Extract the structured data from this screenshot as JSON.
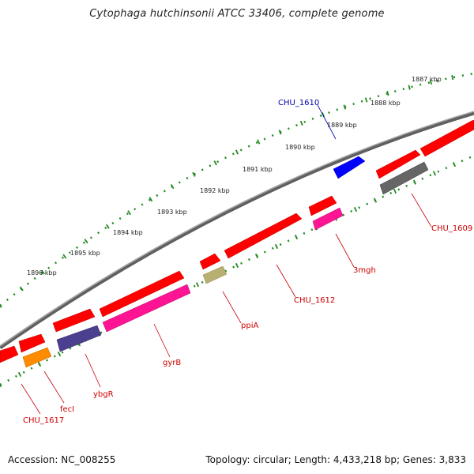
{
  "title": "Cytophaga hutchinsonii ATCC 33406, complete genome",
  "footer": {
    "accession": "Accession: NC_008255",
    "summary": "Topology: circular; Length: 4,433,218 bp; Genes: 3,833"
  },
  "colors": {
    "cds_red": "#ff0000",
    "backbone": "#808080",
    "ruler": "#228b22",
    "label_red": "#cc0000",
    "label_blue": "#0000aa"
  },
  "ruler": {
    "unit": "kbp",
    "ticks": [
      "1887 kbp",
      "1888 kbp",
      "1889 kbp",
      "1890 kbp",
      "1891 kbp",
      "1892 kbp",
      "1893 kbp",
      "1894 kbp",
      "1895 kbp",
      "1896 kbp"
    ]
  },
  "genes": [
    {
      "name": "CHU_1610",
      "color": "#0000ff",
      "label_color": "#0000aa"
    },
    {
      "name": "CHU_1609",
      "color": "#666666",
      "label_color": "#cc0000"
    },
    {
      "name": "3mgh",
      "color": "#ff1493",
      "label_color": "#cc0000"
    },
    {
      "name": "CHU_1612",
      "color": "#ff0000",
      "label_color": "#cc0000"
    },
    {
      "name": "ppiA",
      "color": "#b8b070",
      "label_color": "#cc0000"
    },
    {
      "name": "gyrB",
      "color": "#ff1493",
      "label_color": "#cc0000"
    },
    {
      "name": "ybgR",
      "color": "#4b3f8f",
      "label_color": "#cc0000"
    },
    {
      "name": "fecI",
      "color": "#ff8c00",
      "label_color": "#cc0000"
    },
    {
      "name": "CHU_1617",
      "color": "#ff0000",
      "label_color": "#cc0000"
    }
  ]
}
